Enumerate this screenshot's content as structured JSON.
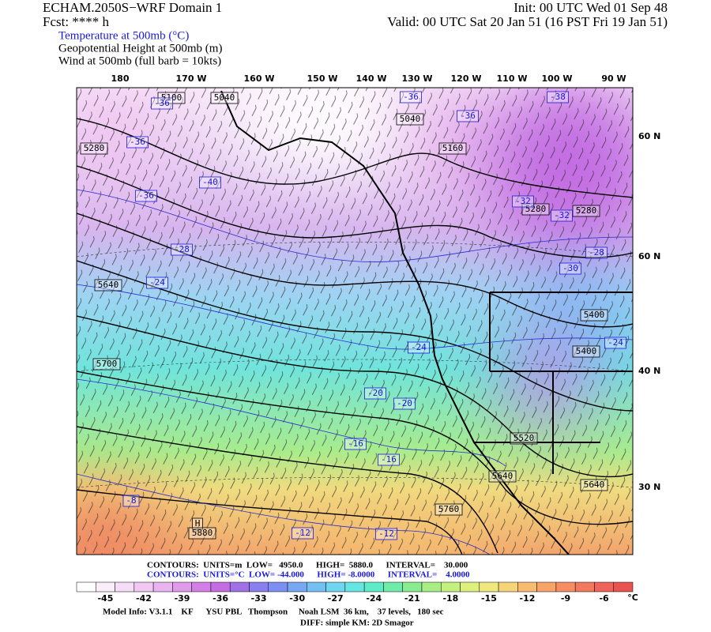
{
  "header": {
    "left_lines": [
      "ECHAM.2050S−WRF Domain 1",
      "Fcst: **** h"
    ],
    "right_lines": [
      "Init: 00 UTC Wed 01 Sep 48",
      "Valid: 00 UTC Sat 20 Jan 51 (16 PST Fri 19 Jan 51)"
    ],
    "fields": [
      "Temperature at 500mb (°C)",
      "Geopotential Height at 500mb (m)",
      "Wind at 500mb (full barb = 10kts)"
    ]
  },
  "map": {
    "lon_labels": [
      "180",
      "170 W",
      "160 W",
      "150 W",
      "140 W",
      "130 W",
      "120 W",
      "110 W",
      "100 W",
      "90 W"
    ],
    "lat_labels": [
      "60 N",
      "60 N",
      "40 N",
      "30 N"
    ],
    "height_labels": [
      "5100",
      "5040",
      "5280",
      "5040",
      "5160",
      "5280",
      "5280",
      "5400",
      "5400",
      "5640",
      "5700",
      "5520",
      "5640",
      "5640",
      "5760",
      "H",
      "5880"
    ],
    "temperature_labels": [
      "-36",
      "-36",
      "-40",
      "-36",
      "-36",
      "-36",
      "-38",
      "-32",
      "-32",
      "-28",
      "-30",
      "-24",
      "-28",
      "-24",
      "-24",
      "-20",
      "-20",
      "-16",
      "-16",
      "-8",
      "-12",
      "-12"
    ]
  },
  "colorbar": {
    "labels": [
      "-45",
      "-42",
      "-39",
      "-36",
      "-33",
      "-30",
      "-27",
      "-24",
      "-21",
      "-18",
      "-15",
      "-12",
      "-9",
      "-6"
    ],
    "unit": "°C",
    "colors": [
      "#ffffff",
      "#fbeefb",
      "#f6dcf6",
      "#f0c8f2",
      "#e9b4ef",
      "#e09ceb",
      "#d37fe6",
      "#c46ce2",
      "#a070e6",
      "#8a7fee",
      "#7c8ff2",
      "#78a8f4",
      "#74c0f4",
      "#6ed6f0",
      "#66e6e0",
      "#5eecc8",
      "#6eeca8",
      "#8aec90",
      "#a8ee84",
      "#c4f080",
      "#ddf07e",
      "#efe87c",
      "#f6d478",
      "#f8bc70",
      "#f8a468",
      "#f68e62",
      "#f2785e",
      "#ee645a",
      "#e8524f"
    ]
  },
  "footer": {
    "height_contours": "CONTOURS:  UNITS=m  LOW=   4950.0      HIGH=  5880.0      INTERVAL=    30.000",
    "temperature_contours": "CONTOURS:  UNITS=°C  LOW= -44.000      HIGH= -8.0000      INTERVAL=    4.0000",
    "model_info": "Model Info: V3.1.1    KF      YSU PBL   Thompson     Noah LSM  36 km,    37 levels,   180 sec",
    "diff": "DIFF: simple KM: 2D Smagor"
  }
}
